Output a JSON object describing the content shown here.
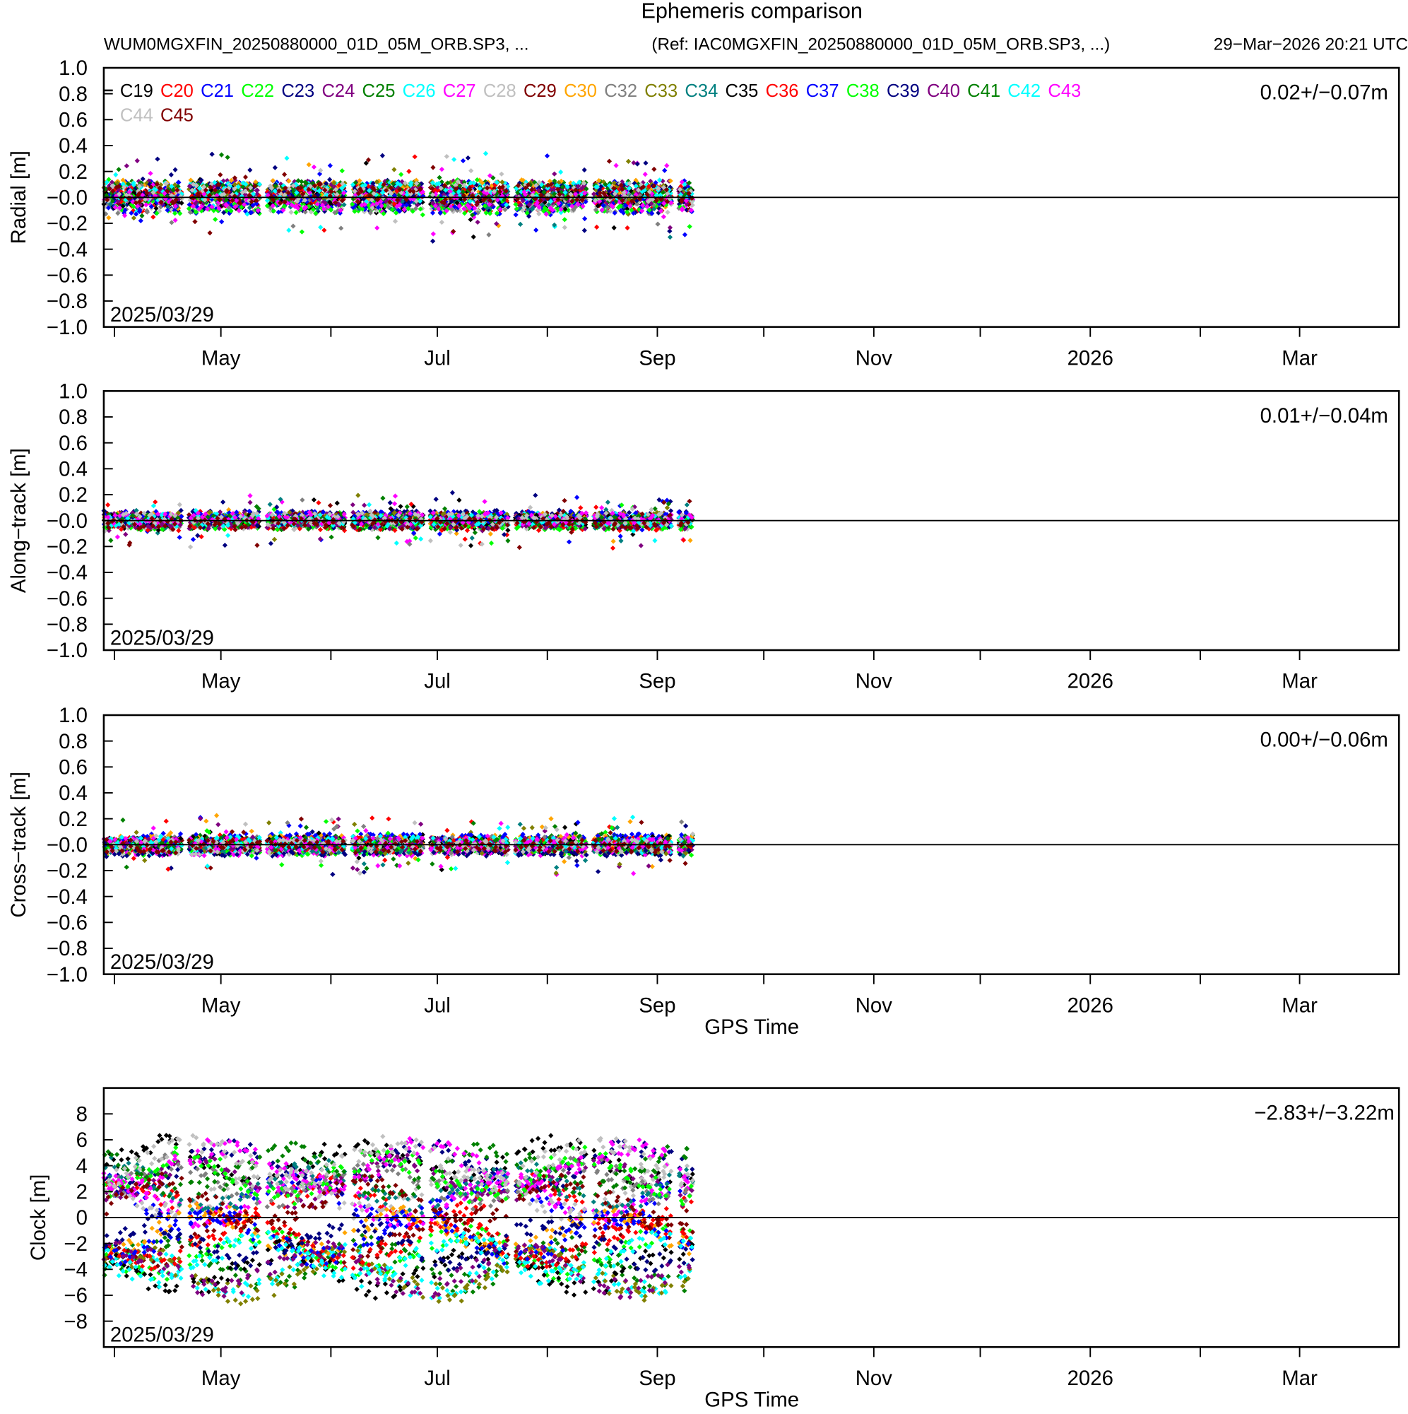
{
  "chart_data": {
    "type": "scatter",
    "title": "Ephemeris comparison",
    "subtitle_left": "WUM0MGXFIN_20250880000_01D_05M_ORB.SP3, ...",
    "subtitle_ref": "(Ref: IAC0MGXFIN_20250880000_01D_05M_ORB.SP3, ...)",
    "timestamp": "29−Mar−2026 20:21 UTC",
    "xlabel": "GPS Time",
    "x_range": [
      "2025-03-29",
      "2026-03-29"
    ],
    "data_extent": [
      "2025-03-29",
      "2025-09-10"
    ],
    "xticks_major": [
      {
        "label": "May",
        "date": "2025-05-01"
      },
      {
        "label": "Jul",
        "date": "2025-07-01"
      },
      {
        "label": "Sep",
        "date": "2025-09-01"
      },
      {
        "label": "Nov",
        "date": "2025-11-01"
      },
      {
        "label": "2026",
        "date": "2026-01-01"
      },
      {
        "label": "Mar",
        "date": "2026-03-01"
      }
    ],
    "xticks_minor": [
      "2025-04-01",
      "2025-06-01",
      "2025-08-01",
      "2025-10-01",
      "2025-12-01",
      "2026-02-01"
    ],
    "series": [
      {
        "name": "C19",
        "color": "#000000"
      },
      {
        "name": "C20",
        "color": "#ff0000"
      },
      {
        "name": "C21",
        "color": "#0000ff"
      },
      {
        "name": "C22",
        "color": "#00ff00"
      },
      {
        "name": "C23",
        "color": "#000080"
      },
      {
        "name": "C24",
        "color": "#800080"
      },
      {
        "name": "C25",
        "color": "#008000"
      },
      {
        "name": "C26",
        "color": "#00ffff"
      },
      {
        "name": "C27",
        "color": "#ff00ff"
      },
      {
        "name": "C28",
        "color": "#c0c0c0"
      },
      {
        "name": "C29",
        "color": "#800000"
      },
      {
        "name": "C30",
        "color": "#ffa500"
      },
      {
        "name": "C32",
        "color": "#808080"
      },
      {
        "name": "C33",
        "color": "#808000"
      },
      {
        "name": "C34",
        "color": "#008080"
      },
      {
        "name": "C35",
        "color": "#000000"
      },
      {
        "name": "C36",
        "color": "#ff0000"
      },
      {
        "name": "C37",
        "color": "#0000ff"
      },
      {
        "name": "C38",
        "color": "#00ff00"
      },
      {
        "name": "C39",
        "color": "#000080"
      },
      {
        "name": "C40",
        "color": "#800080"
      },
      {
        "name": "C41",
        "color": "#008000"
      },
      {
        "name": "C42",
        "color": "#00ffff"
      },
      {
        "name": "C43",
        "color": "#ff00ff"
      },
      {
        "name": "C44",
        "color": "#c0c0c0"
      },
      {
        "name": "C45",
        "color": "#800000"
      }
    ],
    "panels": [
      {
        "name": "radial",
        "ylabel": "Radial [m]",
        "stat": "0.02+/−0.07m",
        "ylim": [
          -1,
          1
        ],
        "spread": 0.15,
        "yticks": [
          {
            "v": 1,
            "l": "1.0"
          },
          {
            "v": 0.8,
            "l": "0.8"
          },
          {
            "v": 0.6,
            "l": "0.6"
          },
          {
            "v": 0.4,
            "l": "0.4"
          },
          {
            "v": 0.2,
            "l": "0.2"
          },
          {
            "v": 0,
            "l": "−0.0"
          },
          {
            "v": -0.2,
            "l": "−0.2"
          },
          {
            "v": -0.4,
            "l": "−0.4"
          },
          {
            "v": -0.6,
            "l": "−0.6"
          },
          {
            "v": -0.8,
            "l": "−0.8"
          },
          {
            "v": -1,
            "l": "−1.0"
          }
        ],
        "date_label": "2025/03/29",
        "show_xlabel": false,
        "legend": true
      },
      {
        "name": "along-track",
        "ylabel": "Along−track [m]",
        "stat": "0.01+/−0.04m",
        "ylim": [
          -1,
          1
        ],
        "spread": 0.09,
        "yticks": [
          {
            "v": 1,
            "l": "1.0"
          },
          {
            "v": 0.8,
            "l": "0.8"
          },
          {
            "v": 0.6,
            "l": "0.6"
          },
          {
            "v": 0.4,
            "l": "0.4"
          },
          {
            "v": 0.2,
            "l": "0.2"
          },
          {
            "v": 0,
            "l": "−0.0"
          },
          {
            "v": -0.2,
            "l": "−0.2"
          },
          {
            "v": -0.4,
            "l": "−0.4"
          },
          {
            "v": -0.6,
            "l": "−0.6"
          },
          {
            "v": -0.8,
            "l": "−0.8"
          },
          {
            "v": -1,
            "l": "−1.0"
          }
        ],
        "date_label": "2025/03/29",
        "show_xlabel": false,
        "legend": false
      },
      {
        "name": "cross-track",
        "ylabel": "Cross−track [m]",
        "stat": "0.00+/−0.06m",
        "ylim": [
          -1,
          1
        ],
        "spread": 0.1,
        "yticks": [
          {
            "v": 1,
            "l": "1.0"
          },
          {
            "v": 0.8,
            "l": "0.8"
          },
          {
            "v": 0.6,
            "l": "0.6"
          },
          {
            "v": 0.4,
            "l": "0.4"
          },
          {
            "v": 0.2,
            "l": "0.2"
          },
          {
            "v": 0,
            "l": "−0.0"
          },
          {
            "v": -0.2,
            "l": "−0.2"
          },
          {
            "v": -0.4,
            "l": "−0.4"
          },
          {
            "v": -0.6,
            "l": "−0.6"
          },
          {
            "v": -0.8,
            "l": "−0.8"
          },
          {
            "v": -1,
            "l": "−1.0"
          }
        ],
        "date_label": "2025/03/29",
        "show_xlabel": true,
        "legend": false
      },
      {
        "name": "clock",
        "ylabel": "Clock [m]",
        "stat": "−2.83+/−3.22m",
        "ylim": [
          -10,
          10
        ],
        "spread": 1.5,
        "yticks": [
          {
            "v": 8,
            "l": "8"
          },
          {
            "v": 6,
            "l": "6"
          },
          {
            "v": 4,
            "l": "4"
          },
          {
            "v": 2,
            "l": "2"
          },
          {
            "v": 0,
            "l": "0"
          },
          {
            "v": -2,
            "l": "−2"
          },
          {
            "v": -4,
            "l": "−4"
          },
          {
            "v": -6,
            "l": "−6"
          },
          {
            "v": -8,
            "l": "−8"
          }
        ],
        "date_label": "2025/03/29",
        "show_xlabel": true,
        "legend": false
      }
    ]
  }
}
